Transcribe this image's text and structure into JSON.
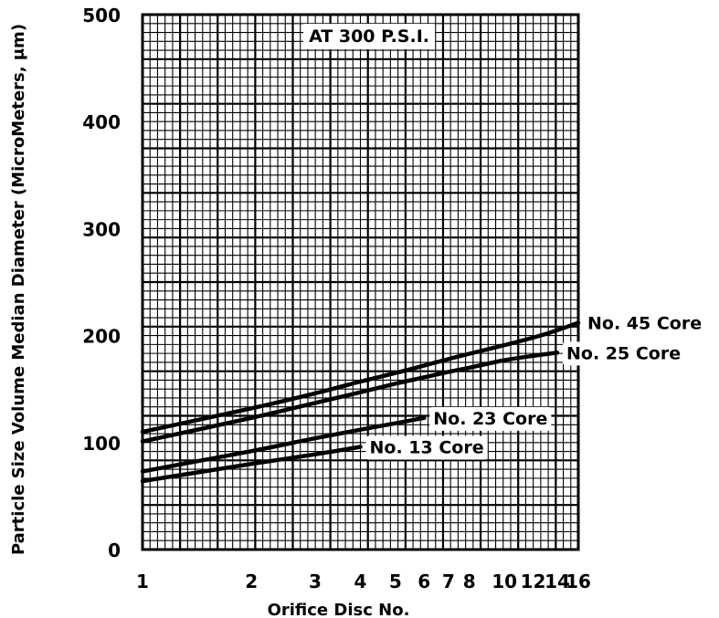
{
  "chart_data": {
    "type": "line",
    "title": "AT 300 P.S.I.",
    "xlabel": "Orifice Disc No.",
    "ylabel": "Particle Size Volume Median Diameter (MicroMeters, μm)",
    "x_ticks": [
      1,
      2,
      3,
      4,
      5,
      6,
      7,
      8,
      10,
      12,
      14,
      16
    ],
    "y_ticks": [
      0,
      100,
      200,
      300,
      400,
      500
    ],
    "xlim": [
      1,
      16
    ],
    "ylim": [
      0,
      500
    ],
    "x_scale": "log",
    "grid": true,
    "series": [
      {
        "name": "No. 45 Core",
        "x": [
          1,
          2,
          3,
          4,
          5,
          6,
          7,
          8,
          10,
          12,
          14,
          16
        ],
        "y": [
          110,
          132,
          146,
          157,
          165,
          172,
          178,
          183,
          191,
          198,
          205,
          212
        ]
      },
      {
        "name": "No. 25 Core",
        "x": [
          1,
          2,
          3,
          4,
          5,
          6,
          7,
          8,
          10,
          12,
          14
        ],
        "y": [
          101,
          123,
          137,
          147,
          155,
          161,
          166,
          170,
          177,
          181,
          184
        ]
      },
      {
        "name": "No. 23 Core",
        "x": [
          1,
          2,
          3,
          4,
          5,
          6
        ],
        "y": [
          73,
          92,
          104,
          112,
          118,
          123
        ]
      },
      {
        "name": "No. 13 Core",
        "x": [
          1,
          2,
          3,
          4
        ],
        "y": [
          64,
          80,
          89,
          96
        ]
      }
    ]
  }
}
